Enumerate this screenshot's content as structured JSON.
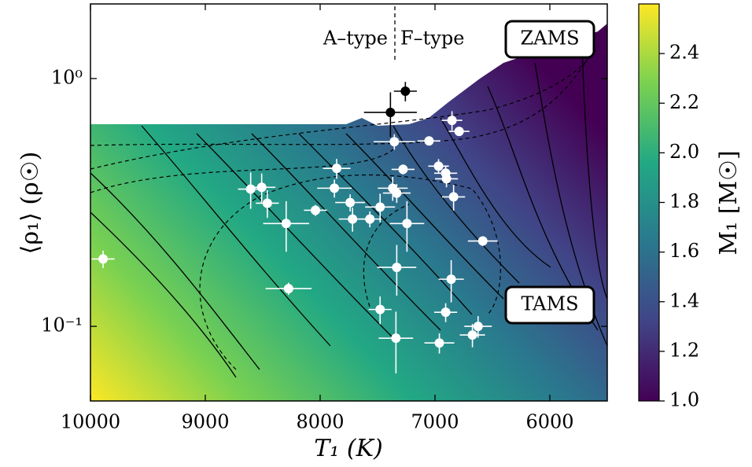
{
  "chart_data": {
    "type": "scatter",
    "xlabel": "T₁ (K)",
    "ylabel": "⟨ρ₁⟩ (ρ☉)",
    "colorbar_label": "M₁ [M☉]",
    "annotations": [
      "A–type",
      "F–type",
      "ZAMS",
      "TAMS"
    ],
    "xlim": [
      10000,
      5500
    ],
    "xticks": [
      10000,
      9000,
      8000,
      7000,
      6000
    ],
    "ylim": [
      0.05,
      2.0
    ],
    "yscale": "log",
    "yticks": [
      {
        "value": 1,
        "label": "10⁰"
      },
      {
        "value": 0.1,
        "label": "10⁻¹"
      }
    ],
    "clim": [
      1.0,
      2.6
    ],
    "cticks": [
      {
        "value": 1.0,
        "label": "1.0"
      },
      1.2,
      1.4,
      1.6,
      1.8,
      {
        "value": 2.0,
        "label": "2.0"
      },
      2.2,
      2.4
    ],
    "series": [
      {
        "color": "#ffffff",
        "x": [
          9890,
          8605,
          8509,
          8460,
          8296,
          8275,
          8041,
          7856,
          7876,
          7739,
          7718,
          7567,
          7478,
          7478,
          7368,
          7333,
          7354,
          7278,
          7244,
          7333,
          7340,
          7052,
          6969,
          6907,
          6900,
          6852,
          6790,
          6838,
          6859,
          6907,
          6962,
          6625,
          6674,
          6584
        ],
        "y": [
          0.187,
          0.358,
          0.364,
          0.314,
          0.26,
          0.142,
          0.294,
          0.434,
          0.361,
          0.316,
          0.271,
          0.271,
          0.303,
          0.117,
          0.361,
          0.345,
          0.556,
          0.43,
          0.26,
          0.173,
          0.0896,
          0.56,
          0.443,
          0.415,
          0.394,
          0.678,
          0.612,
          0.333,
          0.155,
          0.114,
          0.0857,
          0.1,
          0.0923,
          0.221
        ],
        "xerr": [
          100,
          110,
          120,
          100,
          200,
          200,
          100,
          120,
          150,
          130,
          120,
          100,
          130,
          100,
          130,
          120,
          180,
          100,
          150,
          170,
          150,
          100,
          90,
          100,
          100,
          90,
          90,
          100,
          110,
          100,
          130,
          120,
          110,
          130
        ],
        "yerr": [
          0.015,
          0.06,
          0.05,
          0.04,
          0.06,
          0.008,
          0.015,
          0.04,
          0.03,
          0.025,
          0.03,
          0.02,
          0.04,
          0.015,
          0.04,
          0.03,
          0.04,
          0.02,
          0.06,
          0.04,
          0.025,
          0.02,
          0.03,
          0.03,
          0.03,
          0.06,
          0.02,
          0.04,
          0.03,
          0.01,
          0.008,
          0.01,
          0.01,
          0.01
        ]
      },
      {
        "color": "#000000",
        "x": [
          7388,
          7258
        ],
        "y": [
          0.73,
          0.889
        ],
        "xerr": [
          230,
          100
        ],
        "yerr": [
          0.15,
          0.08
        ]
      }
    ]
  }
}
